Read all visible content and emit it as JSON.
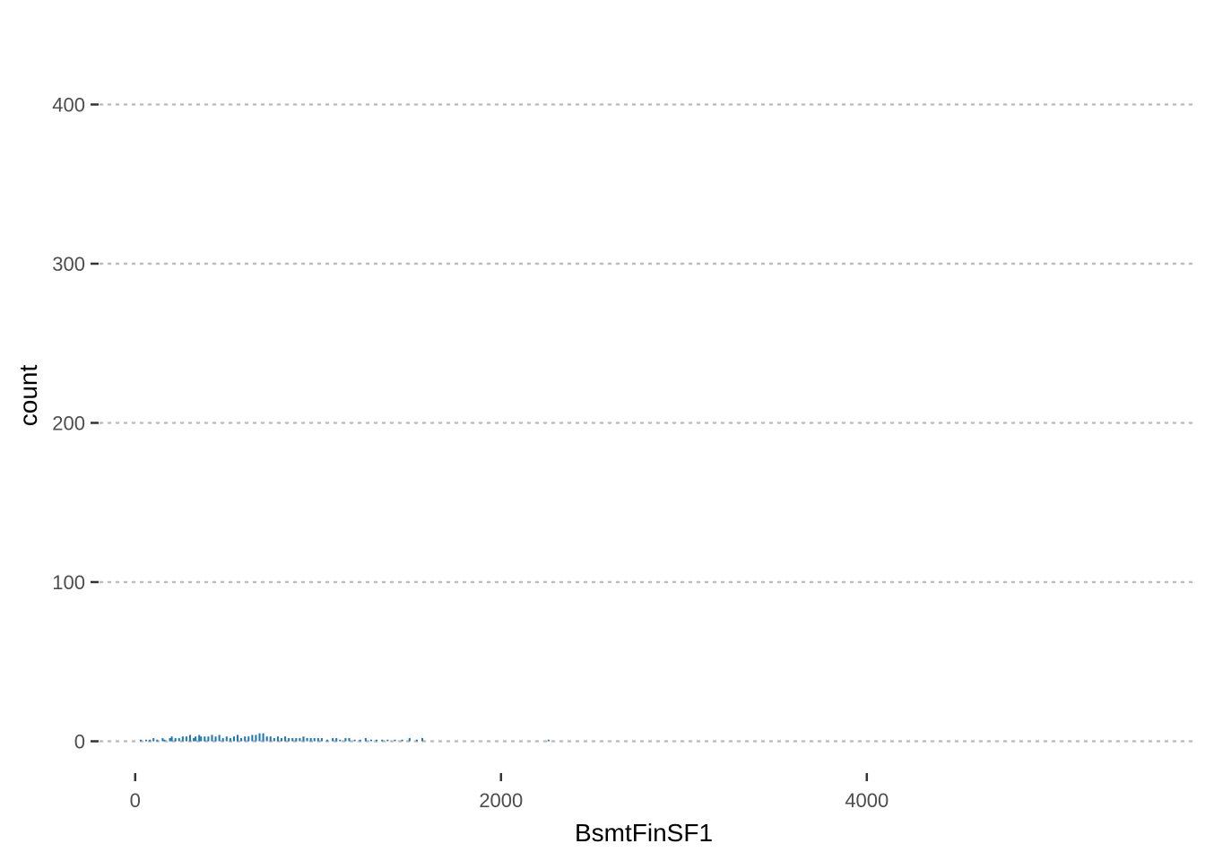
{
  "chart_data": {
    "type": "bar",
    "subtype": "histogram",
    "title": "",
    "xlabel": "BsmtFinSF1",
    "ylabel": "count",
    "xlim": [
      -200,
      5800
    ],
    "ylim": [
      -20,
      460
    ],
    "x_ticks": [
      0,
      2000,
      4000
    ],
    "x_tick_labels": [
      "0",
      "2000",
      "4000"
    ],
    "y_ticks": [
      0,
      100,
      200,
      300,
      400
    ],
    "y_tick_labels": [
      "0",
      "100",
      "200",
      "300",
      "400"
    ],
    "grid": {
      "major_y": "dotted",
      "major_x": "none"
    },
    "legend": "none",
    "bar_color": "#1f77b4",
    "bin_width": 10,
    "x": [
      30,
      60,
      80,
      100,
      120,
      150,
      160,
      190,
      200,
      220,
      240,
      260,
      280,
      300,
      320,
      330,
      350,
      360,
      380,
      400,
      420,
      440,
      460,
      480,
      500,
      520,
      540,
      560,
      580,
      600,
      620,
      640,
      660,
      680,
      700,
      720,
      740,
      760,
      780,
      800,
      820,
      840,
      860,
      880,
      900,
      920,
      940,
      960,
      980,
      1000,
      1020,
      1050,
      1080,
      1100,
      1120,
      1150,
      1170,
      1200,
      1230,
      1260,
      1290,
      1320,
      1350,
      1380,
      1420,
      1460,
      1500,
      1540,
      1570,
      2260
    ],
    "values": [
      1,
      1,
      1,
      2,
      1,
      2,
      1,
      2,
      3,
      2,
      2,
      3,
      3,
      4,
      2,
      3,
      4,
      3,
      3,
      3,
      4,
      3,
      4,
      2,
      3,
      2,
      3,
      4,
      2,
      3,
      3,
      4,
      4,
      5,
      5,
      3,
      3,
      2,
      3,
      2,
      3,
      2,
      2,
      2,
      2,
      3,
      2,
      2,
      2,
      2,
      2,
      1,
      2,
      2,
      1,
      2,
      2,
      1,
      1,
      2,
      1,
      1,
      1,
      1,
      1,
      1,
      2,
      1,
      2,
      1
    ]
  }
}
